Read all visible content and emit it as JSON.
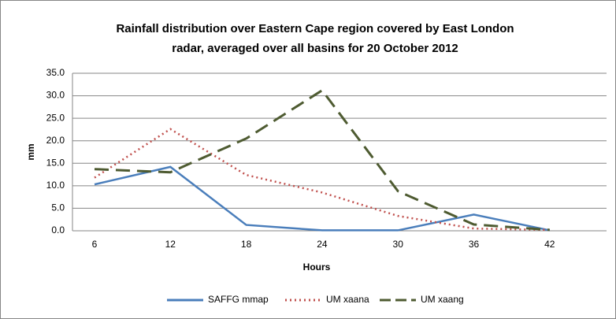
{
  "chart_data": {
    "type": "line",
    "title": [
      "Rainfall distribution over Eastern Cape  region  covered by East London",
      "radar, averaged over all basins for 20 October 2012"
    ],
    "x_label": "Hours",
    "y_label": "mm",
    "categories": [
      "6",
      "12",
      "18",
      "24",
      "30",
      "36",
      "42"
    ],
    "series": [
      {
        "name": "SAFFG mmap",
        "color": "#4a7ebb",
        "style": "solid",
        "values": [
          10.3,
          14.2,
          1.3,
          0.1,
          0.1,
          3.6,
          0.1
        ]
      },
      {
        "name": "UM xaana",
        "color": "#c0504d",
        "style": "dotted",
        "values": [
          11.8,
          22.6,
          12.4,
          8.5,
          3.3,
          0.5,
          0.2
        ]
      },
      {
        "name": "UM xaang",
        "color": "#4e5b31",
        "style": "dashed",
        "values": [
          13.7,
          13.0,
          20.5,
          31.2,
          8.8,
          1.4,
          0.2
        ]
      }
    ],
    "ylim": [
      0,
      35
    ],
    "yticks": [
      {
        "value": 0,
        "label": "0.0"
      },
      {
        "value": 5,
        "label": "5.0"
      },
      {
        "value": 10,
        "label": "10.0"
      },
      {
        "value": 15,
        "label": "15.0"
      },
      {
        "value": 20,
        "label": "20.0"
      },
      {
        "value": 25,
        "label": "25.0"
      },
      {
        "value": 30,
        "label": "30.0"
      },
      {
        "value": 35,
        "label": "35.0"
      }
    ],
    "grid": true,
    "legend": "bottom"
  }
}
